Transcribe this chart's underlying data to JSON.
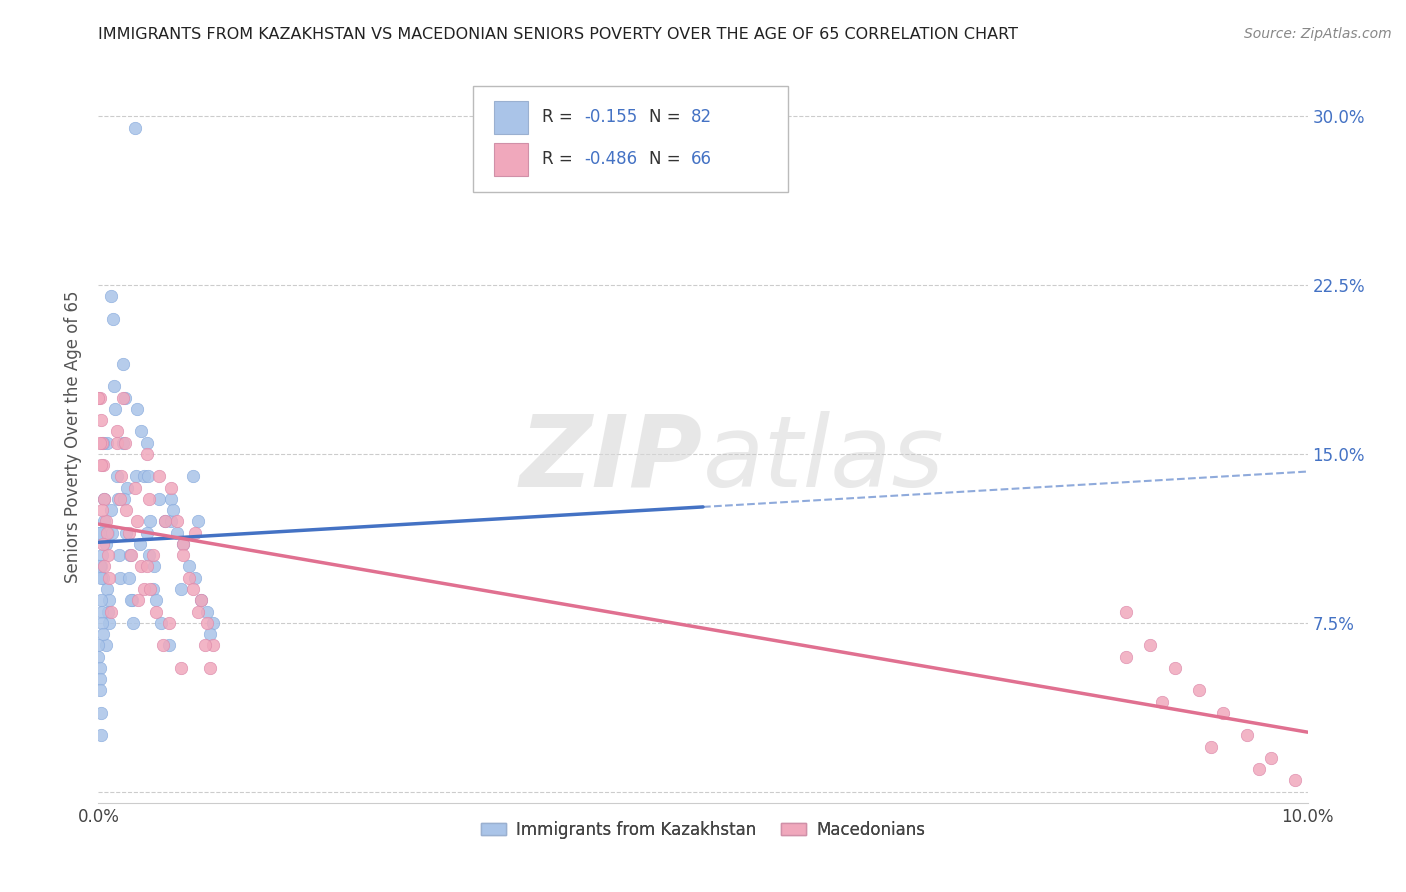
{
  "title": "IMMIGRANTS FROM KAZAKHSTAN VS MACEDONIAN SENIORS POVERTY OVER THE AGE OF 65 CORRELATION CHART",
  "source": "Source: ZipAtlas.com",
  "ylabel": "Seniors Poverty Over the Age of 65",
  "legend_labels": [
    "Immigrants from Kazakhstan",
    "Macedonians"
  ],
  "blue_color": "#aac4e8",
  "pink_color": "#f0a8bc",
  "blue_line_color": "#4472c4",
  "pink_line_color": "#e07090",
  "r_blue": -0.155,
  "n_blue": 82,
  "r_pink": -0.486,
  "n_pink": 66,
  "x_blue": [
    0.0002,
    0.0003,
    0.0004,
    0.0005,
    0.0006,
    0.0007,
    0.0008,
    0.0009,
    0.001,
    0.0012,
    0.0013,
    0.0014,
    0.0015,
    0.0016,
    0.0017,
    0.0018,
    0.001,
    0.0011,
    0.0008,
    0.0009,
    0.0007,
    0.0006,
    0.0005,
    0.0004,
    0.002,
    0.0022,
    0.0024,
    0.0026,
    0.0028,
    0.003,
    0.0032,
    0.0034,
    0.002,
    0.0021,
    0.0023,
    0.0025,
    0.0027,
    0.0029,
    0.0031,
    0.0,
    0.0001,
    0.0001,
    0.0002,
    0.0002,
    0.0003,
    0.0003,
    0.0004,
    0.0,
    0.0,
    0.0001,
    0.0001,
    0.0001,
    0.0002,
    0.0002,
    0.0035,
    0.0038,
    0.004,
    0.0042,
    0.0045,
    0.005,
    0.0055,
    0.004,
    0.0041,
    0.0043,
    0.0046,
    0.0048,
    0.0052,
    0.0058,
    0.006,
    0.0065,
    0.007,
    0.0075,
    0.008,
    0.0085,
    0.009,
    0.0095,
    0.006,
    0.0062,
    0.0068,
    0.0078,
    0.0082,
    0.0092
  ],
  "y_blue": [
    0.1,
    0.105,
    0.095,
    0.12,
    0.11,
    0.09,
    0.115,
    0.085,
    0.22,
    0.21,
    0.18,
    0.17,
    0.14,
    0.13,
    0.105,
    0.095,
    0.125,
    0.115,
    0.08,
    0.075,
    0.155,
    0.065,
    0.13,
    0.155,
    0.19,
    0.175,
    0.135,
    0.105,
    0.085,
    0.295,
    0.17,
    0.11,
    0.155,
    0.13,
    0.115,
    0.095,
    0.085,
    0.075,
    0.14,
    0.115,
    0.115,
    0.1,
    0.095,
    0.085,
    0.08,
    0.075,
    0.07,
    0.065,
    0.06,
    0.055,
    0.05,
    0.045,
    0.035,
    0.025,
    0.16,
    0.14,
    0.115,
    0.105,
    0.09,
    0.13,
    0.12,
    0.155,
    0.14,
    0.12,
    0.1,
    0.085,
    0.075,
    0.065,
    0.12,
    0.115,
    0.11,
    0.1,
    0.095,
    0.085,
    0.08,
    0.075,
    0.13,
    0.125,
    0.09,
    0.14,
    0.12,
    0.07
  ],
  "x_pink": [
    0.0001,
    0.0002,
    0.0003,
    0.0004,
    0.0005,
    0.0006,
    0.0007,
    0.0008,
    0.0009,
    0.001,
    0.0,
    0.0001,
    0.0002,
    0.0003,
    0.0004,
    0.0005,
    0.0015,
    0.0018,
    0.002,
    0.0022,
    0.0025,
    0.003,
    0.0032,
    0.0035,
    0.0038,
    0.0015,
    0.0019,
    0.0023,
    0.0027,
    0.0033,
    0.004,
    0.0042,
    0.0045,
    0.005,
    0.0055,
    0.006,
    0.0065,
    0.004,
    0.0043,
    0.0048,
    0.0053,
    0.0058,
    0.0068,
    0.007,
    0.0075,
    0.008,
    0.0085,
    0.009,
    0.0095,
    0.007,
    0.0078,
    0.0082,
    0.0088,
    0.0092,
    0.085,
    0.087,
    0.089,
    0.091,
    0.093,
    0.095,
    0.097,
    0.099,
    0.085,
    0.088,
    0.092,
    0.096
  ],
  "y_pink": [
    0.175,
    0.165,
    0.155,
    0.145,
    0.13,
    0.12,
    0.115,
    0.105,
    0.095,
    0.08,
    0.175,
    0.155,
    0.145,
    0.125,
    0.11,
    0.1,
    0.155,
    0.13,
    0.175,
    0.155,
    0.115,
    0.135,
    0.12,
    0.1,
    0.09,
    0.16,
    0.14,
    0.125,
    0.105,
    0.085,
    0.15,
    0.13,
    0.105,
    0.14,
    0.12,
    0.135,
    0.12,
    0.1,
    0.09,
    0.08,
    0.065,
    0.075,
    0.055,
    0.11,
    0.095,
    0.115,
    0.085,
    0.075,
    0.065,
    0.105,
    0.09,
    0.08,
    0.065,
    0.055,
    0.08,
    0.065,
    0.055,
    0.045,
    0.035,
    0.025,
    0.015,
    0.005,
    0.06,
    0.04,
    0.02,
    0.01
  ],
  "xlim": [
    0.0,
    0.1
  ],
  "ylim": [
    -0.005,
    0.32
  ],
  "ytick_vals": [
    0.0,
    0.075,
    0.15,
    0.225,
    0.3
  ],
  "ytick_labels": [
    "",
    "7.5%",
    "15.0%",
    "22.5%",
    "30.0%"
  ],
  "xtick_vals": [
    0.0,
    0.02,
    0.04,
    0.06,
    0.08,
    0.1
  ],
  "xtick_labels": [
    "0.0%",
    "",
    "",
    "",
    "",
    "10.0%"
  ],
  "watermark_zip": "ZIP",
  "watermark_atlas": "atlas",
  "axis_label_color": "#4472c4",
  "grid_color": "#cccccc",
  "background_color": "#ffffff"
}
